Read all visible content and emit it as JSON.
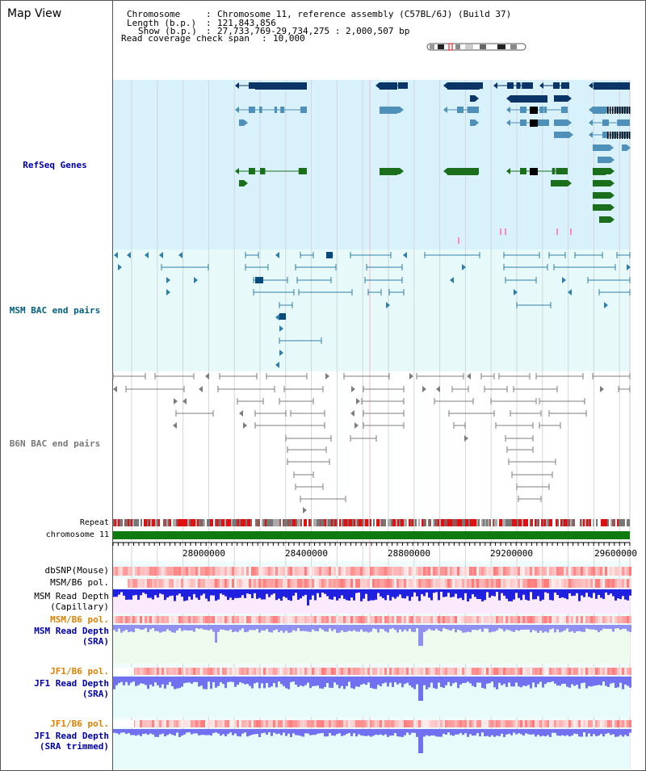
{
  "app_title": "Map View",
  "header": {
    "chromosome_label": "Chromosome",
    "chromosome_value": "Chromosome 11, reference assembly (C57BL/6J) (Build 37)",
    "length_label": "Length (b.p.)",
    "length_value": "121,843,856",
    "show_label": "Show (b.p.)",
    "show_value": "27,733,769-29,734,275 : 2,000,507 bp",
    "coverage_label": "Read coverage check span",
    "coverage_value": "10,000"
  },
  "tracks": {
    "refseq": "RefSeq Genes",
    "msm_bac": "MSM BAC end pairs",
    "b6n_bac": "B6N BAC end pairs",
    "repeat": "Repeat",
    "chromosome": "chromosome 11",
    "dbsnp": "dbSNP(Mouse)",
    "msm_pol": "MSM/B6 pol.",
    "msm_depth_cap_1": "MSM Read Depth",
    "msm_depth_cap_2": "(Capillary)",
    "msm_pol_2": "MSM/B6 pol.",
    "msm_depth_sra_1": "MSM Read Depth",
    "msm_depth_sra_2": "(SRA)",
    "jf1_pol": "JF1/B6 pol.",
    "jf1_depth_sra_1": "JF1 Read Depth",
    "jf1_depth_sra_2": "(SRA)",
    "jf1_pol_2": "JF1/B6 pol.",
    "jf1_depth_trim_1": "JF1 Read Depth",
    "jf1_depth_trim_2": "(SRA trimmed)"
  },
  "axis": {
    "ticks": [
      "28000000",
      "28400000",
      "28800000",
      "29200000",
      "29600000"
    ]
  },
  "colors": {
    "refseq_bg": "#d9f1fb",
    "msm_bg": "#e7f9f9",
    "light_bg": "#f0fbfb",
    "navy": "#0a3566",
    "steel": "#4f90b8",
    "green": "#1b6e1b",
    "teal": "#2f7ea6",
    "gray": "#7d7d7d",
    "blue_label": "#0000aa",
    "teal_label": "#006080",
    "orange_label": "#e08000",
    "depth_blue": "#3030ff"
  }
}
